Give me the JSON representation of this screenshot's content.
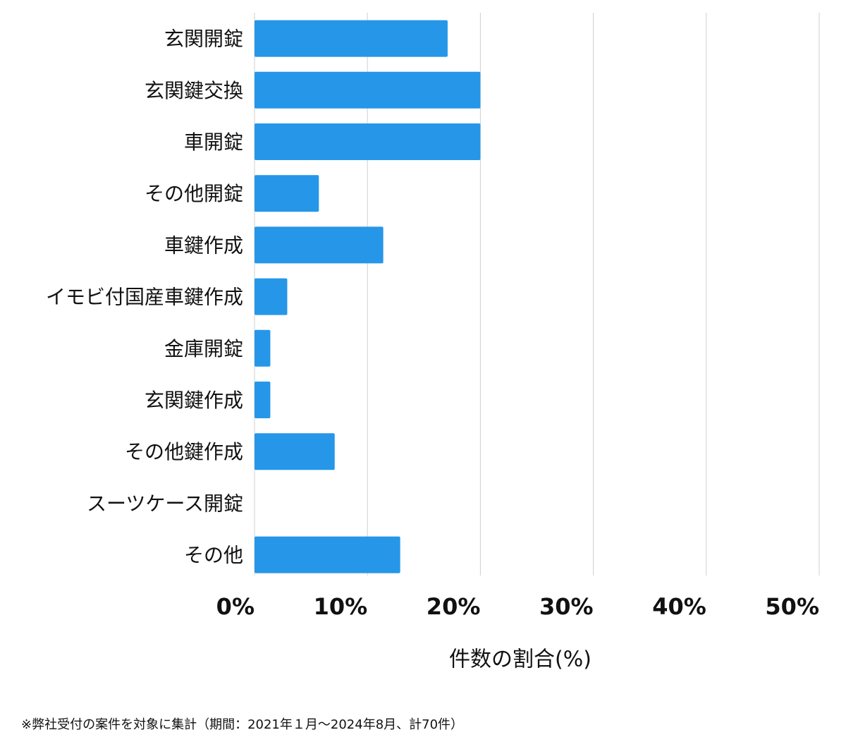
{
  "chart_data": {
    "type": "bar",
    "orientation": "horizontal",
    "categories": [
      "玄関開錠",
      "玄関鍵交換",
      "車開錠",
      "その他開錠",
      "車鍵作成",
      "イモビ付国産車鍵作成",
      "金庫開錠",
      "玄関鍵作成",
      "その他鍵作成",
      "スーツケース開錠",
      "その他"
    ],
    "values": [
      17.1,
      20,
      20,
      5.7,
      11.4,
      2.9,
      1.4,
      1.4,
      7.1,
      0,
      12.9
    ],
    "color": "#2696e8",
    "xlim": [
      0,
      50
    ],
    "xticks": [
      {
        "value": 0,
        "label": "0%"
      },
      {
        "value": 10,
        "label": "10%"
      },
      {
        "value": 20,
        "label": "20%"
      },
      {
        "value": 30,
        "label": "30%"
      },
      {
        "value": 40,
        "label": "40%"
      },
      {
        "value": 50,
        "label": "50%"
      }
    ],
    "x_label": "件数の割合(%)",
    "grid": true,
    "footnote": "※弊社受付の案件を対象に集計（期間：2021年１月〜2024年8月、計70件）"
  }
}
